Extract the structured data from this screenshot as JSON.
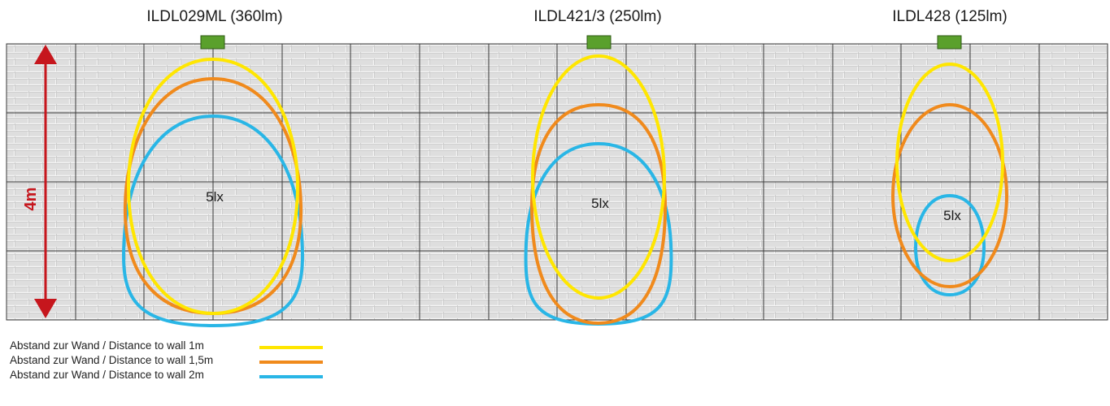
{
  "fixtures": [
    {
      "title": "ILDL029ML (360lm)",
      "center_label": "5lx"
    },
    {
      "title": "ILDL421/3 (250lm)",
      "center_label": "5lx"
    },
    {
      "title": "ILDL428 (125lm)",
      "center_label": "5lx"
    }
  ],
  "height_marker": {
    "label": "4m",
    "color": "#c6161d"
  },
  "colors": {
    "distance_1m": "#ffe600",
    "distance_1_5m": "#f08a1c",
    "distance_2m": "#29b6e6",
    "fixture": "#5aa02c",
    "wall": "#dcdcdc",
    "grid": "#3a3a3a"
  },
  "legend": [
    {
      "label": "Abstand zur Wand / Distance to wall  1m",
      "color": "#ffe600"
    },
    {
      "label": "Abstand zur Wand / Distance to wall  1,5m",
      "color": "#f08a1c"
    },
    {
      "label": "Abstand zur Wand / Distance to wall  2m",
      "color": "#29b6e6"
    }
  ]
}
